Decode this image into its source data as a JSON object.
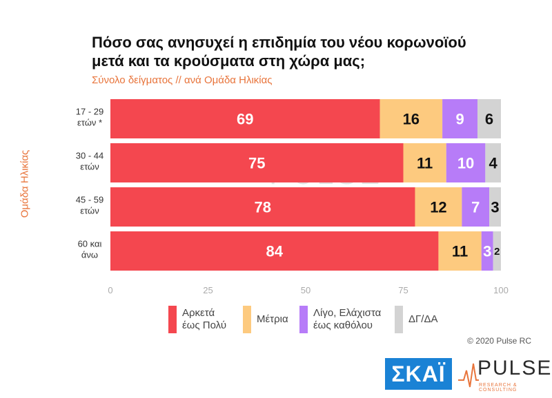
{
  "title_line1": "Πόσο σας ανησυχεί η επιδημία του νέου κορωνοϊού",
  "title_line2": "μετά και τα κρούσματα στη χώρα μας;",
  "subtitle": "Σύνολο δείγματος // ανά Ομάδα Ηλικίας",
  "copyright": "© 2020 Pulse RC",
  "logos": {
    "skai": "ΣΚΑΪ",
    "pulse": "PULSE",
    "pulse_sub": "RESEARCH & CONSULTING"
  },
  "legend": [
    {
      "line1": "Αρκετά",
      "line2": "έως Πολύ",
      "color": "#f4474f"
    },
    {
      "line1": "Μέτρια",
      "line2": "",
      "color": "#fdca7f"
    },
    {
      "line1": "Λίγο, Ελάχιστα",
      "line2": "έως καθόλου",
      "color": "#b77cf8"
    },
    {
      "line1": "ΔΓ/ΔΑ",
      "line2": "",
      "color": "#d3d3d3"
    }
  ],
  "chart_data": {
    "type": "bar",
    "orientation": "horizontal",
    "stacked": true,
    "ylabel": "Ομάδα Ηλικίας",
    "xlim": [
      0,
      100
    ],
    "xticks": [
      0,
      25,
      50,
      75,
      100
    ],
    "grid": false,
    "categories": [
      [
        "17 - 29",
        "ετών *"
      ],
      [
        "30 - 44",
        "ετών"
      ],
      [
        "45 - 59",
        "ετών"
      ],
      [
        "60 και",
        "άνω"
      ]
    ],
    "series": [
      {
        "name": "Αρκετά έως Πολύ",
        "color": "#f4474f",
        "label_color": "#ffffff",
        "values": [
          69,
          75,
          78,
          84
        ]
      },
      {
        "name": "Μέτρια",
        "color": "#fdca7f",
        "label_color": "#111111",
        "values": [
          16,
          11,
          12,
          11
        ]
      },
      {
        "name": "Λίγο, Ελάχιστα έως καθόλου",
        "color": "#b77cf8",
        "label_color": "#ffffff",
        "values": [
          9,
          10,
          7,
          3
        ]
      },
      {
        "name": "ΔΓ/ΔΑ",
        "color": "#d3d3d3",
        "label_color": "#111111",
        "values": [
          6,
          4,
          3,
          2
        ]
      }
    ]
  }
}
